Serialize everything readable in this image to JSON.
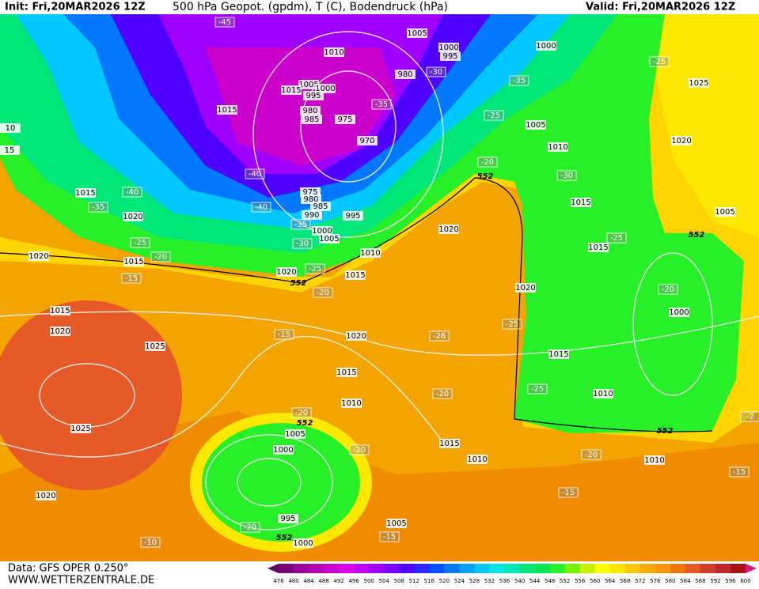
{
  "header": {
    "init": "Init: Fri,20MAR2026 12Z",
    "title": "500 hPa Geopot. (gpdm), T (C), Bodendruck (hPa)",
    "valid": "Valid: Fri,20MAR2026 12Z"
  },
  "footer": {
    "data": "Data: GFS OPER 0.250°",
    "site": "WWW.WETTERZENTRALE.DE"
  },
  "legend": {
    "levels": [
      476,
      480,
      484,
      488,
      492,
      496,
      500,
      504,
      508,
      512,
      516,
      520,
      524,
      528,
      532,
      536,
      540,
      544,
      548,
      552,
      556,
      560,
      564,
      568,
      572,
      576,
      580,
      584,
      588,
      592,
      596,
      600
    ],
    "colors": [
      "#5a0a5a",
      "#7a007a",
      "#9a009a",
      "#b400b4",
      "#cc00cc",
      "#dc00e6",
      "#c000ff",
      "#a000ff",
      "#7a00ff",
      "#5000ff",
      "#2828ff",
      "#0050ff",
      "#0078ff",
      "#00a0ff",
      "#00c8ff",
      "#00e6e6",
      "#00e6b4",
      "#00e678",
      "#00e650",
      "#28f028",
      "#78f000",
      "#c8f000",
      "#ffff00",
      "#ffe600",
      "#ffc800",
      "#ffaa00",
      "#ff9600",
      "#f07800",
      "#e65a28",
      "#d23c28",
      "#be2828",
      "#a01414",
      "#dc1478"
    ]
  },
  "map": {
    "pressure_labels": [
      "1005",
      "1010",
      "1000",
      "995",
      "1000",
      "1025",
      "1005",
      "1000",
      "995",
      "1015",
      "980",
      "1015",
      "980",
      "985",
      "975",
      "970",
      "1005",
      "1010",
      "975",
      "980",
      "985",
      "990",
      "995",
      "1000",
      "1005",
      "1010",
      "1015",
      "1020",
      "1015",
      "1020",
      "1015",
      "1020",
      "1020",
      "1015",
      "1015",
      "1005",
      "1020",
      "1020",
      "1015",
      "1020",
      "1025",
      "1020",
      "1015",
      "1010",
      "1000",
      "1015",
      "1010",
      "1025",
      "1005",
      "1000",
      "1015",
      "1010",
      "1010",
      "1020",
      "995",
      "1005",
      "1000",
      "10",
      "15"
    ],
    "temperature_labels": [
      "-45",
      "-30",
      "-35",
      "-35",
      "-25",
      "-25",
      "-20",
      "-30",
      "-40",
      "-40",
      "-35",
      "-40",
      "-35",
      "-30",
      "-25",
      "-20",
      "-15",
      "-25",
      "-20",
      "-25",
      "-20",
      "-25",
      "-26",
      "-15",
      "-25",
      "-20",
      "-20",
      "-20",
      "-20",
      "-15",
      "-15",
      "-20",
      "-10",
      "-15",
      "-2"
    ],
    "height_labels": [
      "552",
      "552",
      "552",
      "552",
      "552",
      "552"
    ]
  }
}
